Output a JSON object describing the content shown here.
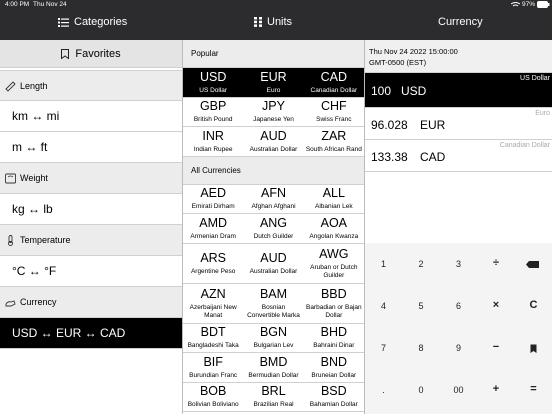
{
  "status_bar": {
    "time": "4:00 PM",
    "date": "Thu Nov 24",
    "battery": "97%"
  },
  "tabs": [
    "Categories",
    "Units",
    "Currency"
  ],
  "favorites": {
    "title": "Favorites",
    "groups": [
      {
        "name": "Length",
        "items": [
          "km ↔ mi",
          "m ↔ ft"
        ]
      },
      {
        "name": "Weight",
        "items": [
          "kg ↔ lb"
        ]
      },
      {
        "name": "Temperature",
        "items": [
          "°C ↔ °F"
        ]
      },
      {
        "name": "Currency",
        "items": [
          "USD ↔ EUR ↔ CAD"
        ]
      }
    ]
  },
  "units": {
    "sections": [
      {
        "title": "Popular",
        "rows": [
          [
            {
              "code": "USD",
              "name": "US Dollar"
            },
            {
              "code": "EUR",
              "name": "Euro"
            },
            {
              "code": "CAD",
              "name": "Canadian Dollar"
            }
          ],
          [
            {
              "code": "GBP",
              "name": "British Pound"
            },
            {
              "code": "JPY",
              "name": "Japanese Yen"
            },
            {
              "code": "CHF",
              "name": "Swiss Franc"
            }
          ],
          [
            {
              "code": "INR",
              "name": "Indian Rupee"
            },
            {
              "code": "AUD",
              "name": "Australian Dollar"
            },
            {
              "code": "ZAR",
              "name": "South African Rand"
            }
          ]
        ]
      },
      {
        "title": "All Currencies",
        "rows": [
          [
            {
              "code": "AED",
              "name": "Emirati Dirham"
            },
            {
              "code": "AFN",
              "name": "Afghan Afghani"
            },
            {
              "code": "ALL",
              "name": "Albanian Lek"
            }
          ],
          [
            {
              "code": "AMD",
              "name": "Armenian Dram"
            },
            {
              "code": "ANG",
              "name": "Dutch Guilder"
            },
            {
              "code": "AOA",
              "name": "Angolan Kwanza"
            }
          ],
          [
            {
              "code": "ARS",
              "name": "Argentine Peso"
            },
            {
              "code": "AUD",
              "name": "Australian Dollar"
            },
            {
              "code": "AWG",
              "name": "Aruban or Dutch Guilder"
            }
          ],
          [
            {
              "code": "AZN",
              "name": "Azerbaijani New Manat"
            },
            {
              "code": "BAM",
              "name": "Bosnian Convertible Marka"
            },
            {
              "code": "BBD",
              "name": "Barbadian or Bajan Dollar"
            }
          ],
          [
            {
              "code": "BDT",
              "name": "Bangladeshi Taka"
            },
            {
              "code": "BGN",
              "name": "Bulgarian Lev"
            },
            {
              "code": "BHD",
              "name": "Bahraini Dinar"
            }
          ],
          [
            {
              "code": "BIF",
              "name": "Burundian Franc"
            },
            {
              "code": "BMD",
              "name": "Bermudian Dollar"
            },
            {
              "code": "BND",
              "name": "Bruneian Dollar"
            }
          ],
          [
            {
              "code": "BOB",
              "name": "Bolivian Boliviano"
            },
            {
              "code": "BRL",
              "name": "Brazilian Real"
            },
            {
              "code": "BSD",
              "name": "Bahamian Dollar"
            }
          ]
        ]
      }
    ]
  },
  "currency": {
    "date": "Thu Nov 24 2022 15:00:00",
    "timezone": "GMT-0500 (EST)",
    "rows": [
      {
        "amount": 100,
        "code": "USD",
        "name": "US Dollar"
      },
      {
        "amount": 96.028,
        "code": "EUR",
        "name": "Euro"
      },
      {
        "amount": 133.38,
        "code": "CAD",
        "name": "Canadian Dollar"
      }
    ]
  },
  "keypad": [
    [
      "1",
      "2",
      "3",
      "÷"
    ],
    [
      "4",
      "5",
      "6",
      "×",
      "C"
    ],
    [
      "7",
      "8",
      "9",
      "−"
    ],
    [
      ".",
      "0",
      "00",
      "+",
      "="
    ]
  ]
}
